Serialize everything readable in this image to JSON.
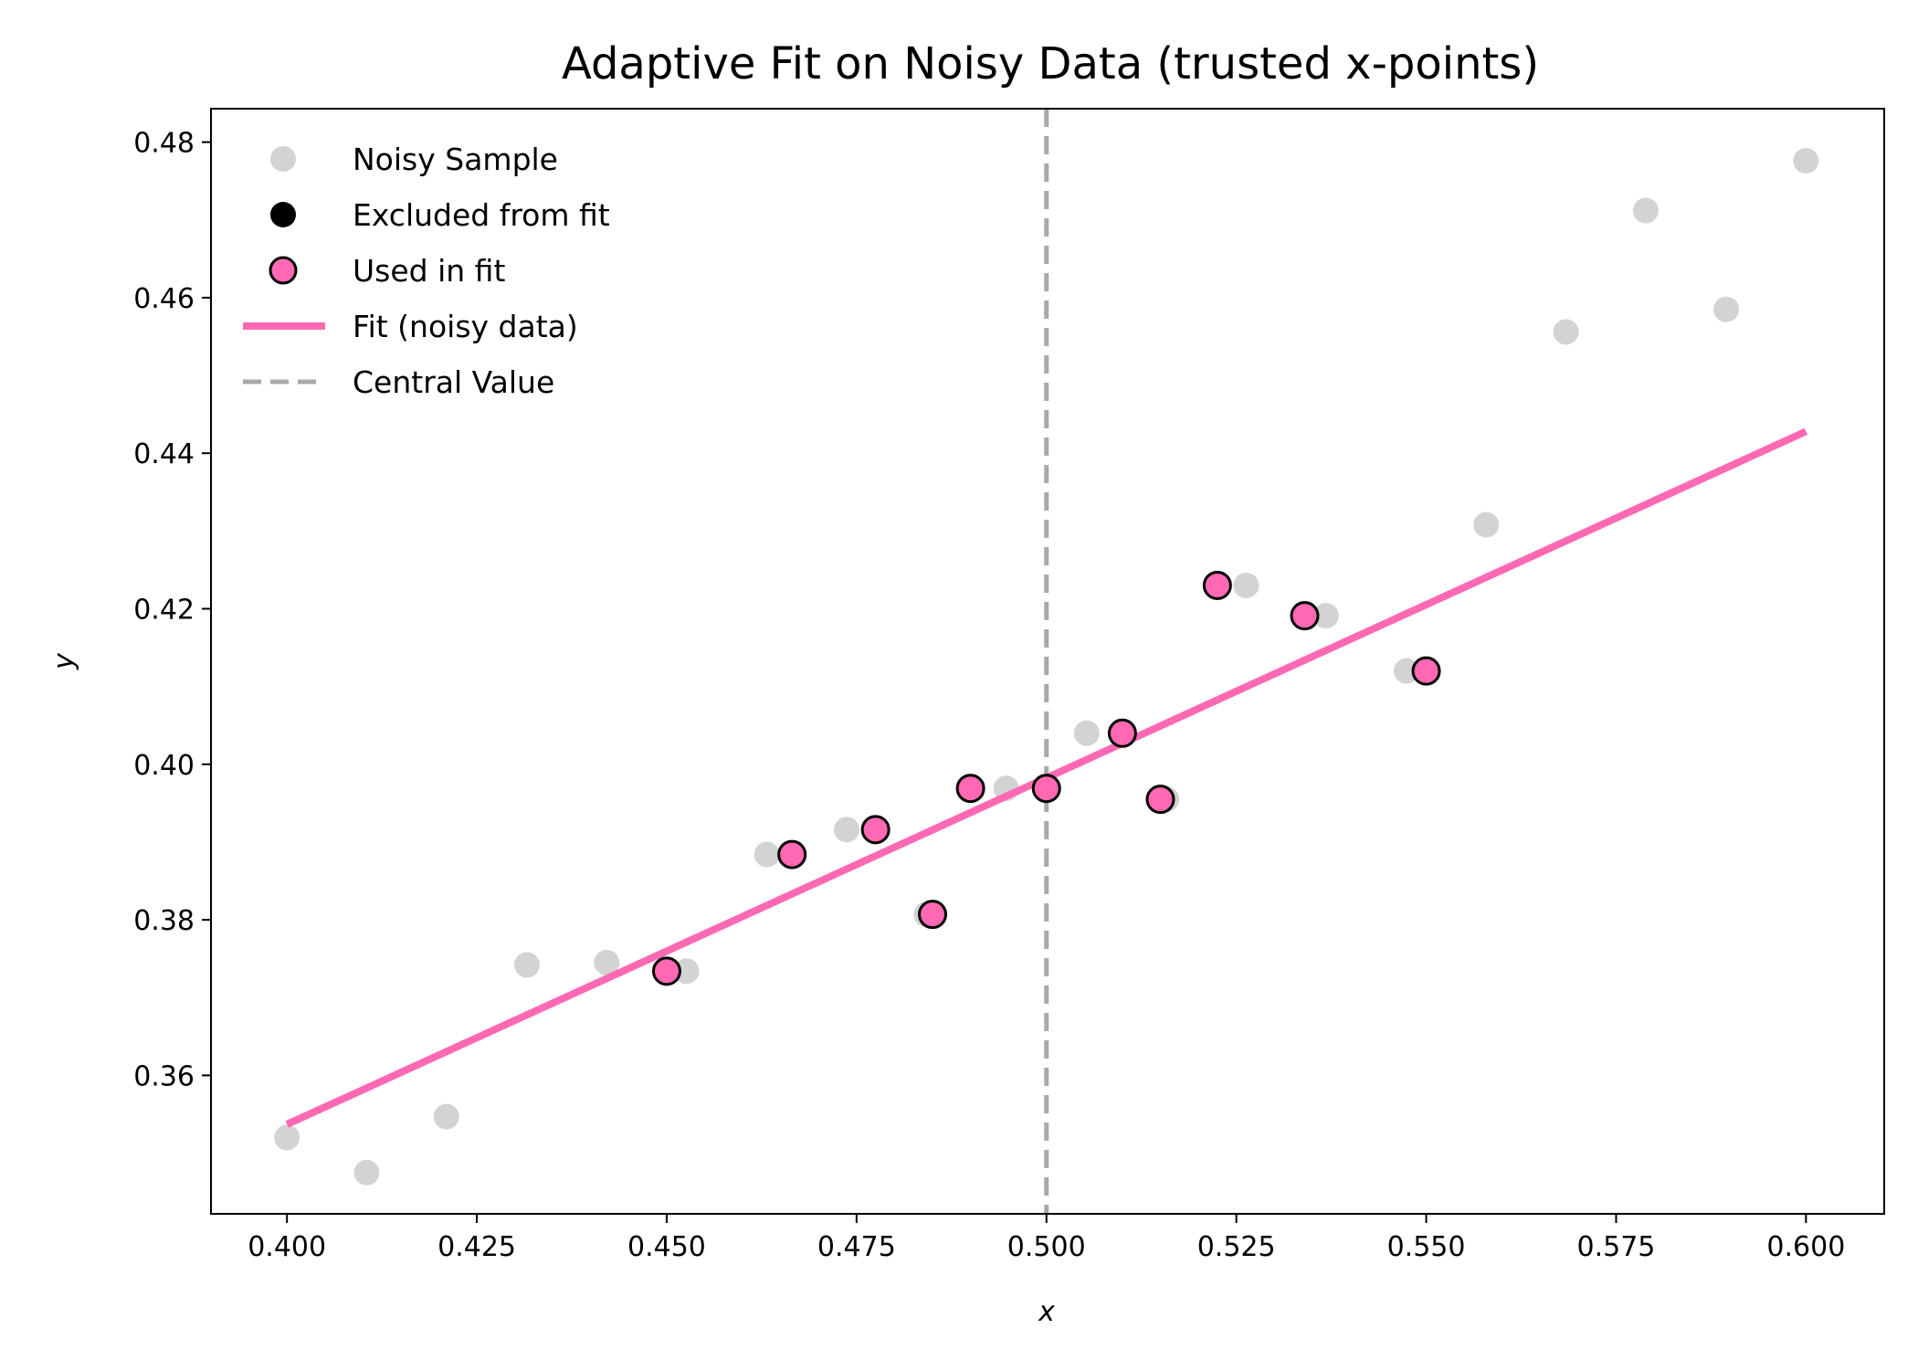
{
  "chart_data": {
    "type": "scatter",
    "title": "Adaptive Fit on Noisy Data (trusted x-points)",
    "xlabel": "x",
    "ylabel": "y",
    "xlim": [
      0.39,
      0.6103
    ],
    "ylim": [
      0.3422,
      0.4843
    ],
    "xticks": [
      "0.400",
      "0.425",
      "0.450",
      "0.475",
      "0.500",
      "0.525",
      "0.550",
      "0.575",
      "0.600"
    ],
    "yticks": [
      "0.36",
      "0.38",
      "0.40",
      "0.42",
      "0.44",
      "0.46",
      "0.48"
    ],
    "grid": false,
    "legend_position": "upper-left",
    "series": [
      {
        "name": "Noisy Sample",
        "color": "#d3d3d3",
        "points": [
          [
            0.4,
            0.352
          ],
          [
            0.4105,
            0.3475
          ],
          [
            0.421,
            0.3547
          ],
          [
            0.4316,
            0.3742
          ],
          [
            0.4421,
            0.3745
          ],
          [
            0.4526,
            0.3734
          ],
          [
            0.4632,
            0.3884
          ],
          [
            0.4737,
            0.3916
          ],
          [
            0.4842,
            0.3807
          ],
          [
            0.4947,
            0.3969
          ],
          [
            0.5053,
            0.404
          ],
          [
            0.5158,
            0.3955
          ],
          [
            0.5263,
            0.423
          ],
          [
            0.5368,
            0.4191
          ],
          [
            0.5474,
            0.412
          ],
          [
            0.5579,
            0.4308
          ],
          [
            0.5684,
            0.4556
          ],
          [
            0.5789,
            0.4712
          ],
          [
            0.5895,
            0.4585
          ],
          [
            0.6,
            0.4776
          ]
        ]
      },
      {
        "name": "Excluded from fit",
        "color": "#000000",
        "points": []
      },
      {
        "name": "Used in fit",
        "color": "#ff69b4",
        "edge_color": "#000000",
        "points": [
          [
            0.45,
            0.3734
          ],
          [
            0.4665,
            0.3884
          ],
          [
            0.4775,
            0.3916
          ],
          [
            0.485,
            0.3807
          ],
          [
            0.49,
            0.3969
          ],
          [
            0.5,
            0.3969
          ],
          [
            0.51,
            0.404
          ],
          [
            0.515,
            0.3955
          ],
          [
            0.5225,
            0.423
          ],
          [
            0.534,
            0.4191
          ],
          [
            0.55,
            0.412
          ]
        ]
      },
      {
        "name": "Fit (noisy data)",
        "type": "line",
        "color": "#ff69b4",
        "points": [
          [
            0.4,
            0.3537
          ],
          [
            0.6,
            0.4428
          ]
        ]
      },
      {
        "name": "Central Value",
        "type": "vline",
        "color": "#a9a9a9",
        "x": 0.5
      }
    ]
  }
}
